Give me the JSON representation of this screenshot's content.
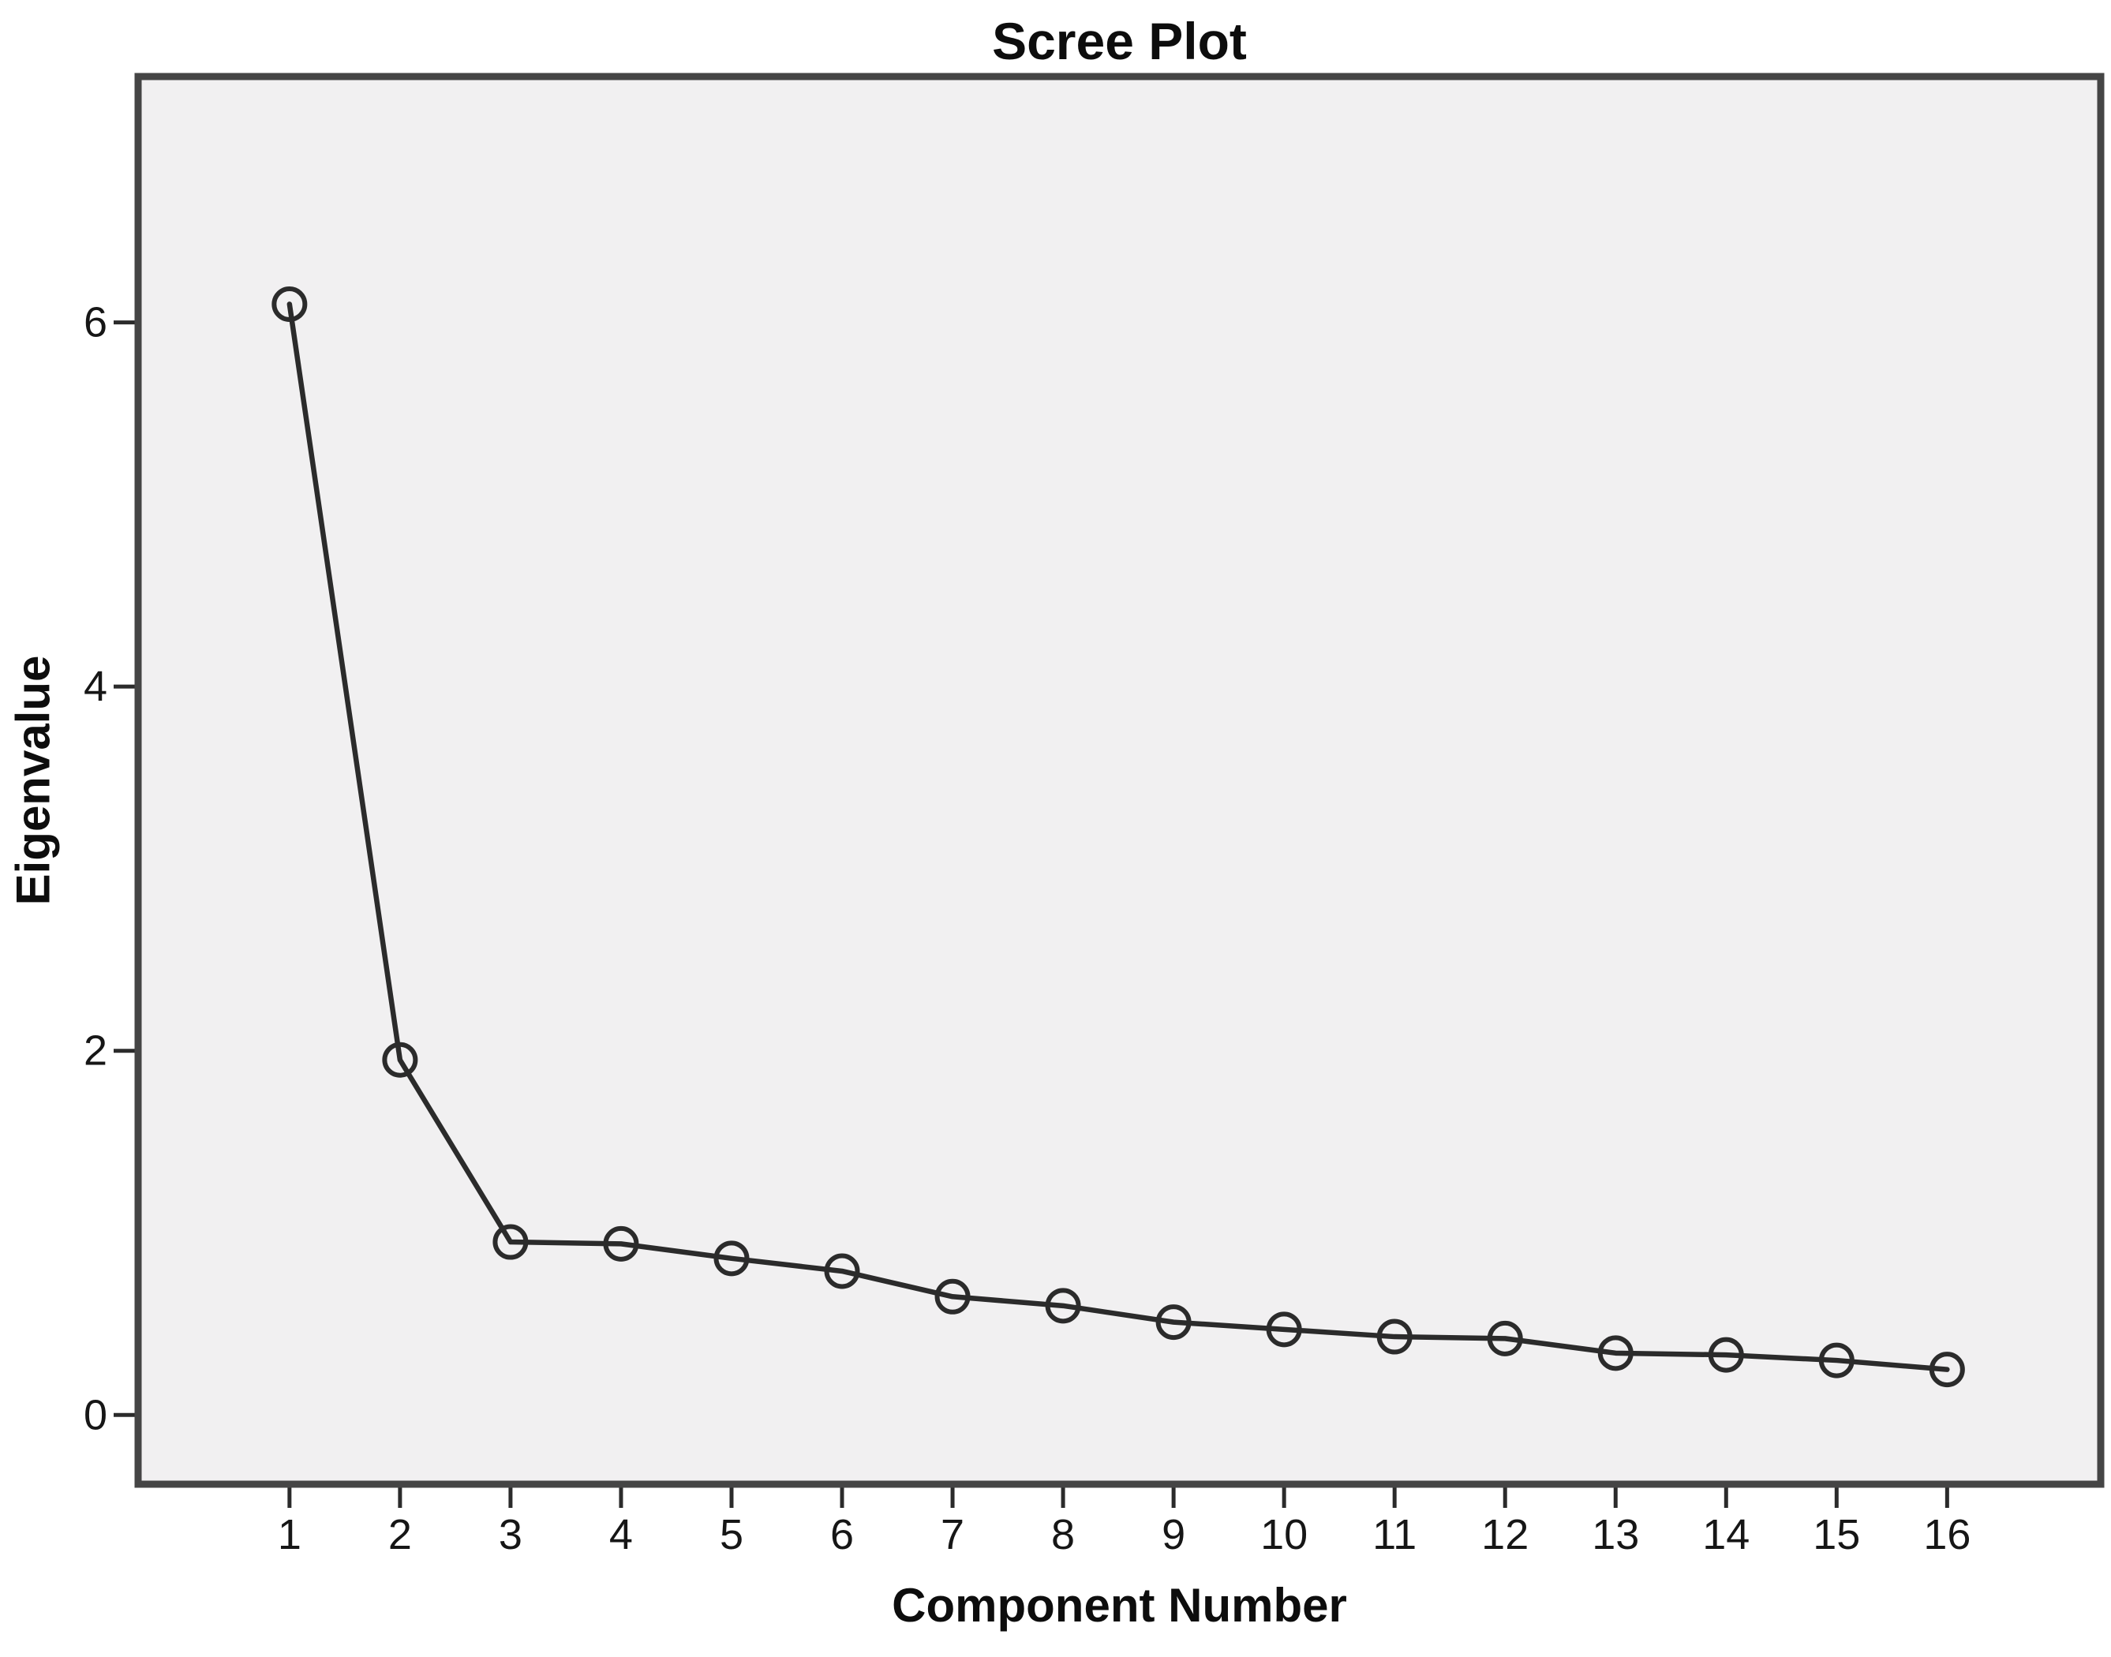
{
  "title": "Scree Plot",
  "chart_data": {
    "type": "line",
    "title": "Scree Plot",
    "xlabel": "Component Number",
    "ylabel": "Eigenvalue",
    "series_name": "Eigenvalue",
    "categories": [
      1,
      2,
      3,
      4,
      5,
      6,
      7,
      8,
      9,
      10,
      11,
      12,
      13,
      14,
      15,
      16
    ],
    "values": [
      6.1,
      1.95,
      0.95,
      0.94,
      0.86,
      0.79,
      0.65,
      0.6,
      0.51,
      0.47,
      0.43,
      0.42,
      0.34,
      0.33,
      0.3,
      0.25
    ],
    "x_tick_labels": [
      "1",
      "2",
      "3",
      "4",
      "5",
      "6",
      "7",
      "8",
      "9",
      "10",
      "11",
      "12",
      "13",
      "14",
      "15",
      "16"
    ],
    "y_ticks": [
      0,
      2,
      4,
      6
    ],
    "y_tick_labels": [
      "0",
      "2",
      "4",
      "6"
    ],
    "xlim": [
      -0.37,
      17.39
    ],
    "ylim": [
      -0.38,
      7.35
    ],
    "grid": false,
    "legend": false,
    "marker": "open-circle",
    "line_color": "#2b2b2b",
    "marker_color": "#2b2b2b",
    "plot_background": "#f1f0f1",
    "frame_color": "#454545",
    "tick_color": "#2b2b2b"
  }
}
